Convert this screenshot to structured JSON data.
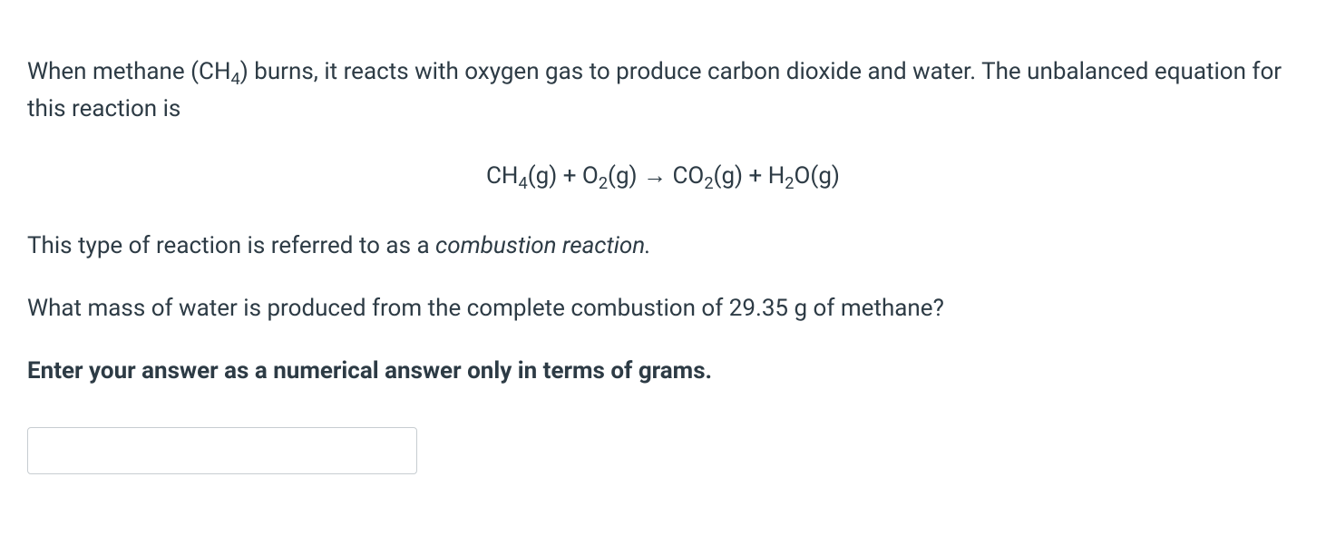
{
  "question": {
    "intro_part1": "When methane (CH",
    "intro_sub1": "4",
    "intro_part2": ") burns, it reacts with oxygen gas to produce carbon dioxide and water. The unbalanced equation for this reaction is",
    "equation": {
      "ch4": "CH",
      "ch4_sub": "4",
      "ch4_state": "(g) + O",
      "o2_sub": "2",
      "o2_state": "(g) → CO",
      "co2_sub": "2",
      "co2_state": "(g) + H",
      "h2o_sub": "2",
      "h2o_end": "O(g)"
    },
    "description_part1": "This type of reaction is referred to as a ",
    "description_italic": "combustion reaction.",
    "prompt": "What mass of water is produced from the complete combustion of 29.35 g of methane?",
    "instruction": "Enter your answer as a numerical answer only in terms of grams."
  },
  "styling": {
    "background_color": "#ffffff",
    "text_color": "#2d3b45",
    "input_border_color": "#c7cdd1",
    "font_size_body": 26,
    "input_width": 430,
    "input_height": 52
  }
}
